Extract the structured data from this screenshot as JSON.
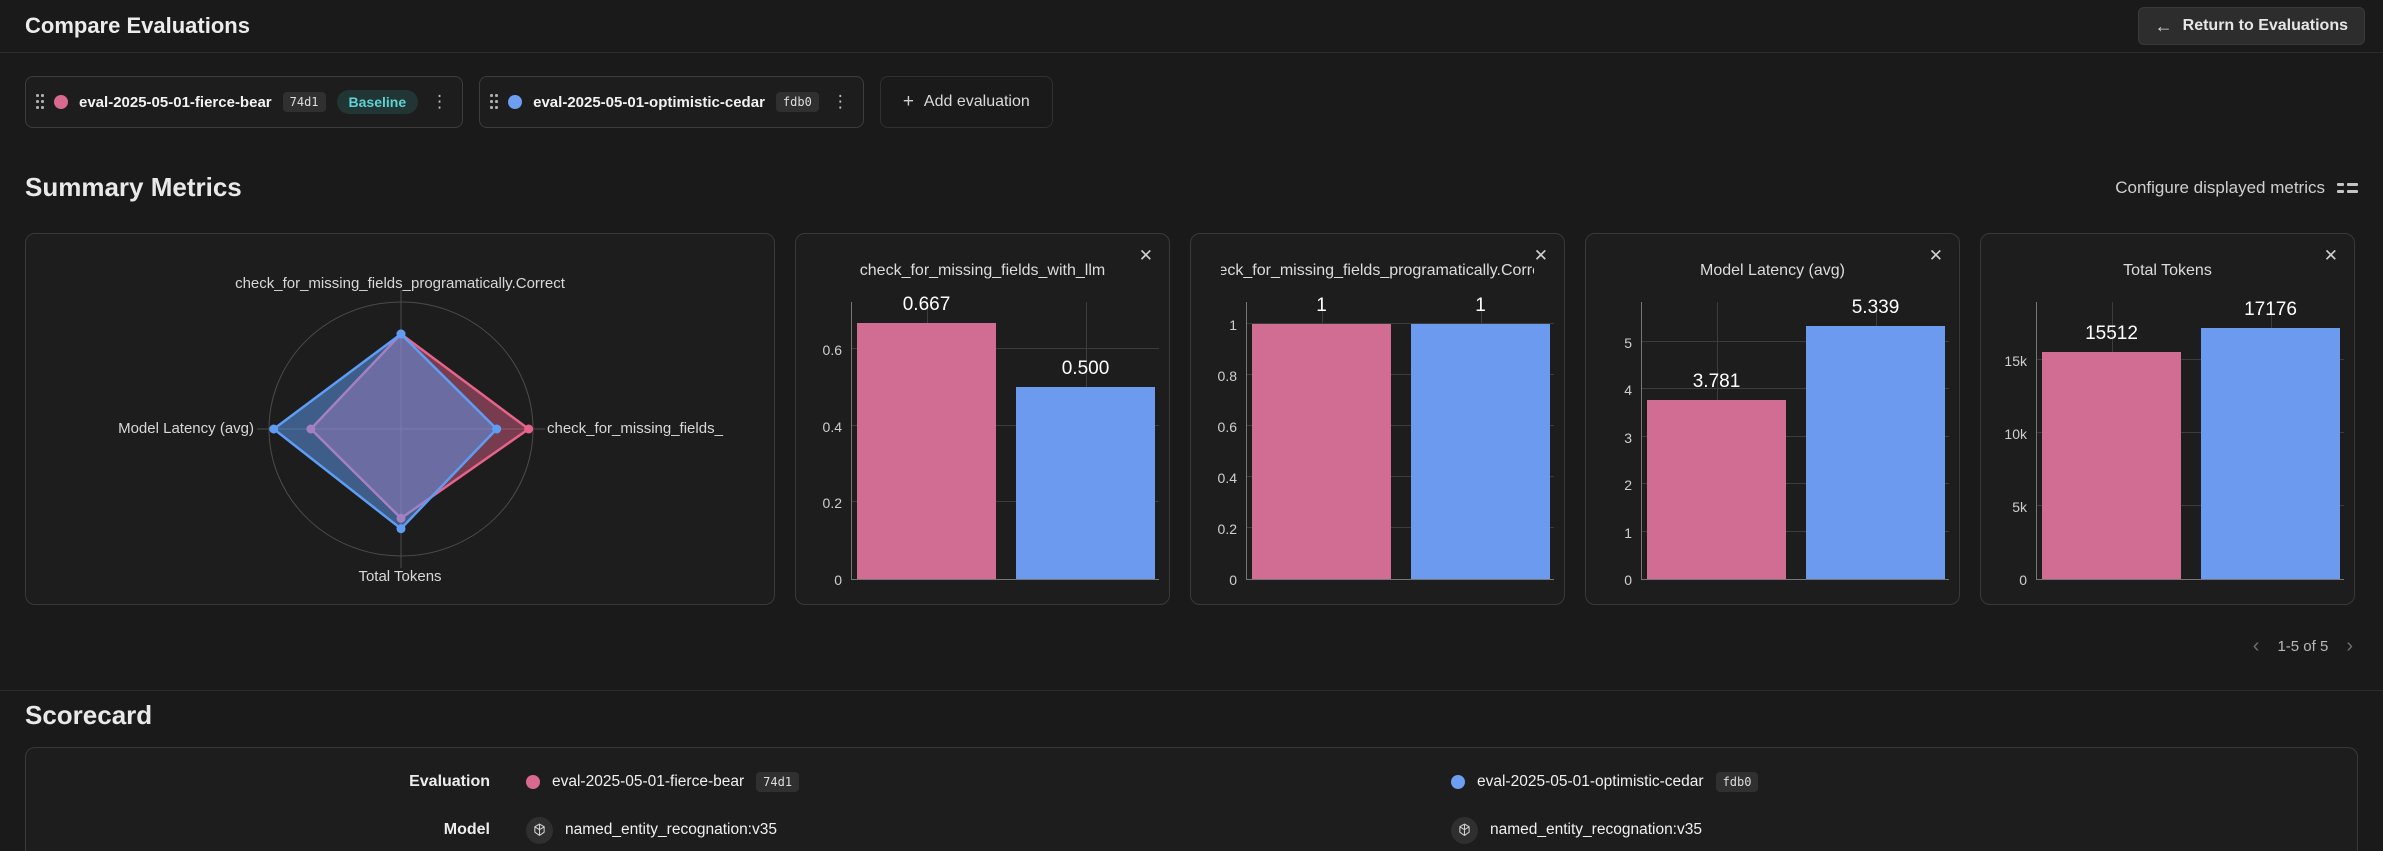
{
  "page": {
    "title": "Compare Evaluations",
    "return_label": "Return to Evaluations"
  },
  "icons": {
    "back": "←",
    "plus": "+",
    "close": "✕",
    "kebab": "⋮",
    "prev": "‹",
    "next": "›"
  },
  "toolbar": {
    "evaluations": [
      {
        "name": "eval-2025-05-01-fierce-bear",
        "hash": "74d1",
        "baseline_label": "Baseline",
        "color": "#d9698f"
      },
      {
        "name": "eval-2025-05-01-optimistic-cedar",
        "hash": "fdb0",
        "color": "#6d9ef1"
      }
    ],
    "add_label": "Add evaluation"
  },
  "summary": {
    "title": "Summary Metrics",
    "configure_label": "Configure displayed metrics",
    "pagination_label": "1-5 of 5"
  },
  "chart_data": [
    {
      "type": "radar",
      "axes": [
        "check_for_missing_fields_programatically.Correct",
        "check_for_missing_fields_",
        "Total Tokens",
        "Model Latency (avg)"
      ],
      "series": [
        {
          "name": "eval-2025-05-01-fierce-bear",
          "color": "#e7638c",
          "fill": "rgba(231,99,140,0.45)",
          "values": [
            1,
            0.667,
            15512,
            3.781
          ],
          "fractions": [
            0.748,
            0.967,
            0.703,
            0.683
          ]
        },
        {
          "name": "eval-2025-05-01-optimistic-cedar",
          "color": "#5f9df5",
          "fill": "rgba(95,157,245,0.5)",
          "values": [
            1,
            0.5,
            17176,
            5.339
          ],
          "fractions": [
            0.748,
            0.725,
            0.785,
            0.964
          ]
        }
      ]
    },
    {
      "type": "bar",
      "title": "check_for_missing_fields_with_llm",
      "categories": [
        "eval-2025-05-01-fierce-bear",
        "eval-2025-05-01-optimistic-cedar"
      ],
      "values": [
        0.667,
        0.5
      ],
      "value_labels": [
        "0.667",
        "0.500"
      ],
      "bar_colors": [
        "#d16d92",
        "#6c9aee"
      ],
      "ticks": [
        0,
        0.2,
        0.4,
        0.6
      ],
      "tick_labels": [
        "0",
        "0.2",
        "0.4",
        "0.6"
      ],
      "ymax": 0.725
    },
    {
      "type": "bar",
      "title": "check_for_missing_fields_programatically.Correct",
      "categories": [
        "eval-2025-05-01-fierce-bear",
        "eval-2025-05-01-optimistic-cedar"
      ],
      "values": [
        1,
        1
      ],
      "value_labels": [
        "1",
        "1"
      ],
      "bar_colors": [
        "#d16d92",
        "#6c9aee"
      ],
      "ticks": [
        0,
        0.2,
        0.4,
        0.6,
        0.8,
        1
      ],
      "tick_labels": [
        "0",
        "0.2",
        "0.4",
        "0.6",
        "0.8",
        "1"
      ],
      "ymax": 1.09
    },
    {
      "type": "bar",
      "title": "Model Latency (avg)",
      "categories": [
        "eval-2025-05-01-fierce-bear",
        "eval-2025-05-01-optimistic-cedar"
      ],
      "values": [
        3.781,
        5.339
      ],
      "value_labels": [
        "3.781",
        "5.339"
      ],
      "bar_colors": [
        "#d16d92",
        "#6c9aee"
      ],
      "ticks": [
        0,
        1,
        2,
        3,
        4,
        5
      ],
      "tick_labels": [
        "0",
        "1",
        "2",
        "3",
        "4",
        "5"
      ],
      "ymax": 5.86
    },
    {
      "type": "bar",
      "title": "Total Tokens",
      "categories": [
        "eval-2025-05-01-fierce-bear",
        "eval-2025-05-01-optimistic-cedar"
      ],
      "values": [
        15512,
        17176
      ],
      "value_labels": [
        "15512",
        "17176"
      ],
      "bar_colors": [
        "#d16d92",
        "#6c9aee"
      ],
      "ticks": [
        0,
        5000,
        10000,
        15000
      ],
      "tick_labels": [
        "0",
        "5k",
        "10k",
        "15k"
      ],
      "ymax": 19000
    }
  ],
  "scorecard": {
    "title": "Scorecard",
    "evaluation_label": "Evaluation",
    "model_label": "Model",
    "columns": [
      {
        "eval_name": "eval-2025-05-01-fierce-bear",
        "hash": "74d1",
        "dot_color": "#d9698f",
        "model": "named_entity_recognation:v35"
      },
      {
        "eval_name": "eval-2025-05-01-optimistic-cedar",
        "hash": "fdb0",
        "dot_color": "#6d9ef1",
        "model": "named_entity_recognation:v35"
      }
    ]
  }
}
